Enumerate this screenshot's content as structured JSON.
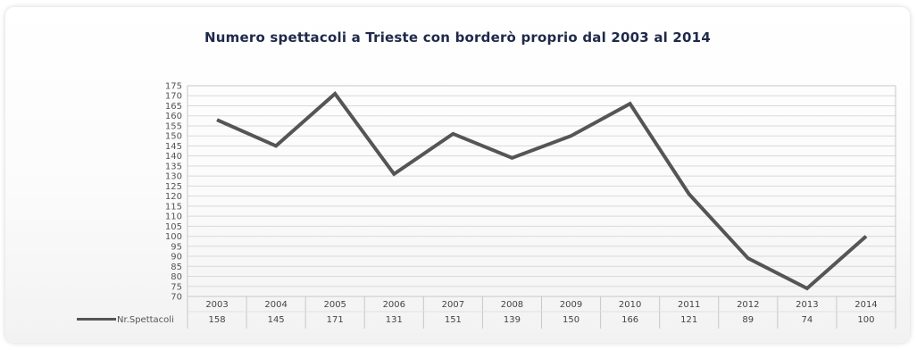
{
  "chart_data": {
    "type": "line",
    "title": "Numero spettacoli a Trieste con borderò proprio dal 2003 al 2014",
    "xlabel": "",
    "ylabel": "",
    "categories": [
      "2003",
      "2004",
      "2005",
      "2006",
      "2007",
      "2008",
      "2009",
      "2010",
      "2011",
      "2012",
      "2013",
      "2014"
    ],
    "series": [
      {
        "name": "Nr.Spettacoli",
        "values": [
          158,
          145,
          171,
          131,
          151,
          139,
          150,
          166,
          121,
          89,
          74,
          100
        ]
      }
    ],
    "ylim": [
      70,
      175
    ],
    "ytick_step": 5,
    "grid": true,
    "legend": "bottom-left data table",
    "line_color": "#555555"
  }
}
